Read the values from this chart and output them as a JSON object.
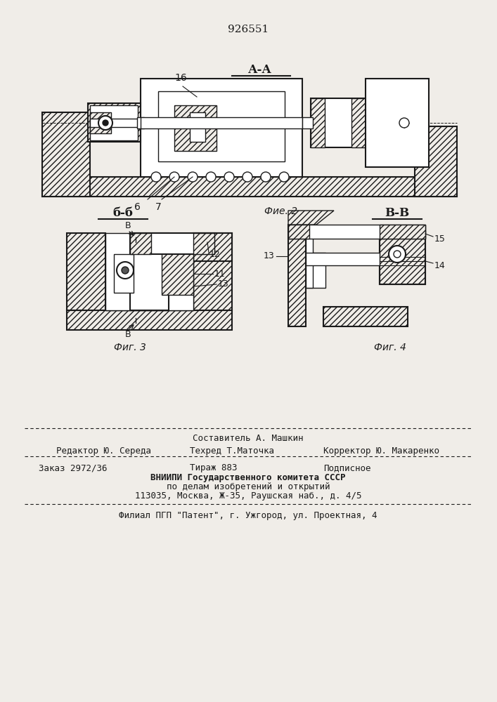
{
  "patent_number": "926551",
  "background_color": "#f0ede8",
  "line_color": "#1a1a1a",
  "hatch_color": "#1a1a1a",
  "fig2_label": "А-А",
  "fig2_caption": "Фие. 2",
  "fig3_label": "б-б",
  "fig3_caption": "Фиг. 3",
  "fig4_label": "В-В",
  "fig4_caption": "Фиг. 4",
  "view_b_label": "В",
  "footer_lines": [
    "Составитель А. Машкин",
    "Редактор Ю. Середа        Техред Т.Маточка        Корректор Ю. Макаренко",
    "Заказ 2972/36                Тираж 883                  Подписное",
    "                ВНИИПИ Государственного комитета СССР",
    "                    по делам изобретений и открытий",
    "              113035, Москва, Ж-35, Раушская наб., д. 4/5",
    "        Филиал ПГП \"Патент\", г. Ужгород, ул. Проектная, 4"
  ]
}
